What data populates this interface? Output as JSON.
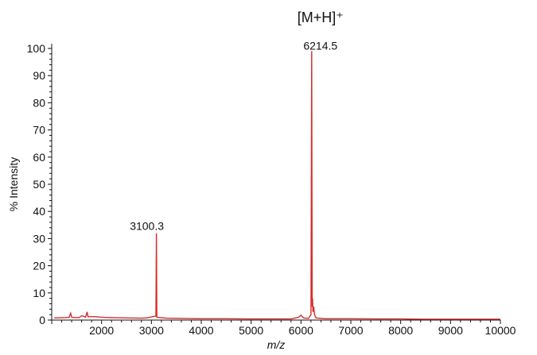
{
  "chart_data": {
    "type": "line",
    "title": "",
    "xlabel": "m/z",
    "ylabel": "% Intensity",
    "xlim": [
      1000,
      10000
    ],
    "ylim": [
      0,
      100
    ],
    "x_ticks": [
      2000,
      3000,
      4000,
      5000,
      6000,
      7000,
      8000,
      9000,
      10000
    ],
    "y_ticks": [
      0,
      10,
      20,
      30,
      40,
      50,
      60,
      70,
      80,
      90,
      100
    ],
    "grid": false,
    "series_color": "#d62c2c",
    "annotations": [
      {
        "text": "3100.3",
        "x": 3100.3,
        "y": 32
      },
      {
        "text": "6214.5",
        "x": 6214.5,
        "y": 99
      },
      {
        "text": "[M+H]⁺",
        "x": 6214.5,
        "y": 100
      }
    ],
    "series": [
      {
        "values": [
          [
            1050,
            0.8
          ],
          [
            1250,
            0.9
          ],
          [
            1350,
            1.0
          ],
          [
            1380,
            2.5
          ],
          [
            1400,
            1.0
          ],
          [
            1550,
            0.9
          ],
          [
            1600,
            1.6
          ],
          [
            1680,
            1.1
          ],
          [
            1710,
            3.0
          ],
          [
            1730,
            1.2
          ],
          [
            1850,
            1.3
          ],
          [
            1950,
            1.1
          ],
          [
            2050,
            1.0
          ],
          [
            2200,
            0.9
          ],
          [
            2500,
            0.8
          ],
          [
            2800,
            0.7
          ],
          [
            2900,
            0.8
          ],
          [
            3090,
            1.5
          ],
          [
            3100.3,
            32
          ],
          [
            3110,
            1.0
          ],
          [
            3300,
            0.7
          ],
          [
            3600,
            0.6
          ],
          [
            4000,
            0.5
          ],
          [
            4500,
            0.5
          ],
          [
            5000,
            0.4
          ],
          [
            5500,
            0.4
          ],
          [
            5800,
            0.4
          ],
          [
            5950,
            1.0
          ],
          [
            6000,
            1.8
          ],
          [
            6050,
            0.8
          ],
          [
            6150,
            0.6
          ],
          [
            6200,
            2.0
          ],
          [
            6214.5,
            99
          ],
          [
            6225,
            5.0
          ],
          [
            6232,
            8.0
          ],
          [
            6240,
            3.0
          ],
          [
            6255,
            5.0
          ],
          [
            6270,
            2.0
          ],
          [
            6300,
            0.8
          ],
          [
            6500,
            0.5
          ],
          [
            7000,
            0.5
          ],
          [
            7500,
            0.4
          ],
          [
            8000,
            0.4
          ],
          [
            8500,
            0.3
          ],
          [
            9000,
            0.3
          ],
          [
            9500,
            0.3
          ],
          [
            10000,
            0.3
          ]
        ]
      }
    ]
  }
}
